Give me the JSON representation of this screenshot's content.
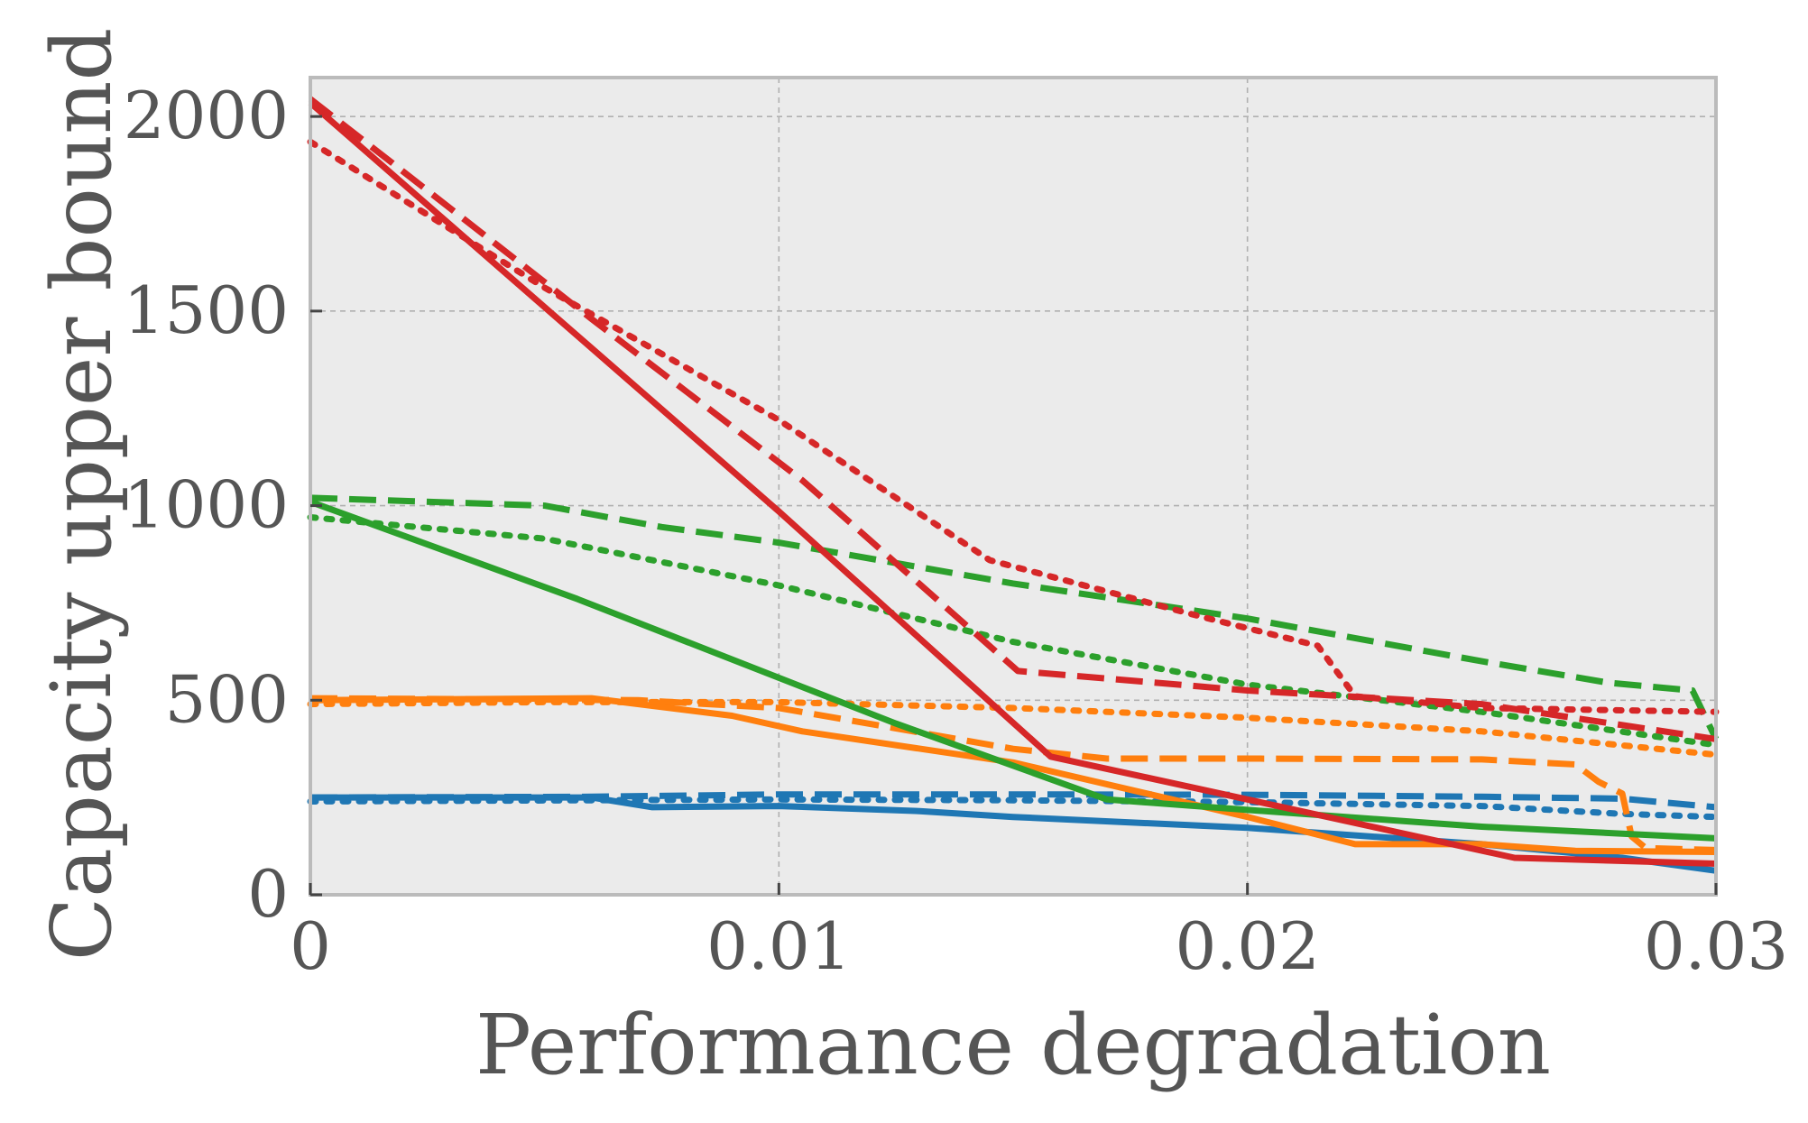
{
  "chart_data": {
    "type": "line",
    "title": "",
    "xlabel": "Performance degradation",
    "ylabel": "Capacity upper bound",
    "xlim": [
      0,
      0.03
    ],
    "ylim": [
      0,
      2100
    ],
    "grid": true,
    "legend": "none",
    "x_ticks": [
      0,
      0.01,
      0.02,
      0.03
    ],
    "x_tick_labels": [
      "0",
      "0.01",
      "0.02",
      "0.03"
    ],
    "y_ticks": [
      0,
      500,
      1000,
      1500,
      2000
    ],
    "y_tick_labels": [
      "0",
      "500",
      "1000",
      "1500",
      "2000"
    ],
    "colors": {
      "blue": "#1f77b4",
      "orange": "#ff7f0e",
      "green": "#2ca02c",
      "red": "#d62728",
      "background": "#ebebeb",
      "grid": "#b0b0b0",
      "frame": "#bbbbbb"
    },
    "series": [
      {
        "name": "blue-solid",
        "color": "#1f77b4",
        "style": "solid",
        "points": [
          [
            0,
            250
          ],
          [
            0.006,
            250
          ],
          [
            0.0073,
            225
          ],
          [
            0.01,
            228
          ],
          [
            0.013,
            215
          ],
          [
            0.015,
            200
          ],
          [
            0.02,
            172
          ],
          [
            0.025,
            130
          ],
          [
            0.028,
            95
          ],
          [
            0.03,
            62
          ]
        ]
      },
      {
        "name": "blue-dashed",
        "color": "#1f77b4",
        "style": "dashed",
        "points": [
          [
            0,
            250
          ],
          [
            0.006,
            252
          ],
          [
            0.01,
            258
          ],
          [
            0.015,
            258
          ],
          [
            0.02,
            257
          ],
          [
            0.025,
            252
          ],
          [
            0.028,
            247
          ],
          [
            0.03,
            225
          ]
        ]
      },
      {
        "name": "blue-dotted",
        "color": "#1f77b4",
        "style": "dotted",
        "points": [
          [
            0,
            240
          ],
          [
            0.006,
            243
          ],
          [
            0.01,
            245
          ],
          [
            0.015,
            243
          ],
          [
            0.02,
            238
          ],
          [
            0.025,
            228
          ],
          [
            0.028,
            208
          ],
          [
            0.03,
            200
          ]
        ]
      },
      {
        "name": "orange-solid",
        "color": "#ff7f0e",
        "style": "solid",
        "points": [
          [
            0,
            500
          ],
          [
            0.006,
            505
          ],
          [
            0.009,
            460
          ],
          [
            0.0105,
            420
          ],
          [
            0.015,
            340
          ],
          [
            0.02,
            200
          ],
          [
            0.0223,
            130
          ],
          [
            0.025,
            130
          ],
          [
            0.027,
            113
          ],
          [
            0.03,
            110
          ]
        ]
      },
      {
        "name": "orange-dashed",
        "color": "#ff7f0e",
        "style": "dashed",
        "points": [
          [
            0,
            505
          ],
          [
            0.007,
            500
          ],
          [
            0.01,
            480
          ],
          [
            0.015,
            375
          ],
          [
            0.017,
            350
          ],
          [
            0.02,
            350
          ],
          [
            0.025,
            348
          ],
          [
            0.027,
            335
          ],
          [
            0.0275,
            290
          ],
          [
            0.028,
            260
          ],
          [
            0.0282,
            150
          ],
          [
            0.0285,
            120
          ],
          [
            0.03,
            115
          ]
        ]
      },
      {
        "name": "orange-dotted",
        "color": "#ff7f0e",
        "style": "dotted",
        "points": [
          [
            0,
            490
          ],
          [
            0.005,
            495
          ],
          [
            0.01,
            495
          ],
          [
            0.015,
            480
          ],
          [
            0.02,
            455
          ],
          [
            0.025,
            420
          ],
          [
            0.03,
            360
          ]
        ]
      },
      {
        "name": "green-solid",
        "color": "#2ca02c",
        "style": "solid",
        "points": [
          [
            0,
            1010
          ],
          [
            0.0057,
            760
          ],
          [
            0.0125,
            440
          ],
          [
            0.017,
            245
          ],
          [
            0.02,
            218
          ],
          [
            0.025,
            175
          ],
          [
            0.03,
            145
          ]
        ]
      },
      {
        "name": "green-dashed",
        "color": "#2ca02c",
        "style": "dashed",
        "points": [
          [
            0,
            1020
          ],
          [
            0.005,
            1000
          ],
          [
            0.0075,
            945
          ],
          [
            0.01,
            905
          ],
          [
            0.015,
            800
          ],
          [
            0.02,
            710
          ],
          [
            0.025,
            600
          ],
          [
            0.0277,
            545
          ],
          [
            0.0295,
            525
          ],
          [
            0.03,
            400
          ]
        ]
      },
      {
        "name": "green-dotted",
        "color": "#2ca02c",
        "style": "dotted",
        "points": [
          [
            0,
            970
          ],
          [
            0.005,
            915
          ],
          [
            0.01,
            795
          ],
          [
            0.015,
            650
          ],
          [
            0.02,
            540
          ],
          [
            0.025,
            470
          ],
          [
            0.03,
            385
          ]
        ]
      },
      {
        "name": "red-solid",
        "color": "#d62728",
        "style": "solid",
        "points": [
          [
            0,
            2035
          ],
          [
            0.01,
            985
          ],
          [
            0.0158,
            355
          ],
          [
            0.02,
            245
          ],
          [
            0.0257,
            95
          ],
          [
            0.03,
            80
          ]
        ]
      },
      {
        "name": "red-dashed",
        "color": "#d62728",
        "style": "dashed",
        "points": [
          [
            0,
            2045
          ],
          [
            0.006,
            1480
          ],
          [
            0.0105,
            1065
          ],
          [
            0.0151,
            575
          ],
          [
            0.02,
            525
          ],
          [
            0.025,
            490
          ],
          [
            0.03,
            400
          ]
        ]
      },
      {
        "name": "red-dotted",
        "color": "#d62728",
        "style": "dotted",
        "points": [
          [
            0,
            1935
          ],
          [
            0.005,
            1560
          ],
          [
            0.01,
            1220
          ],
          [
            0.0145,
            860
          ],
          [
            0.019,
            715
          ],
          [
            0.0215,
            640
          ],
          [
            0.0223,
            510
          ],
          [
            0.025,
            480
          ],
          [
            0.03,
            470
          ]
        ]
      }
    ]
  }
}
